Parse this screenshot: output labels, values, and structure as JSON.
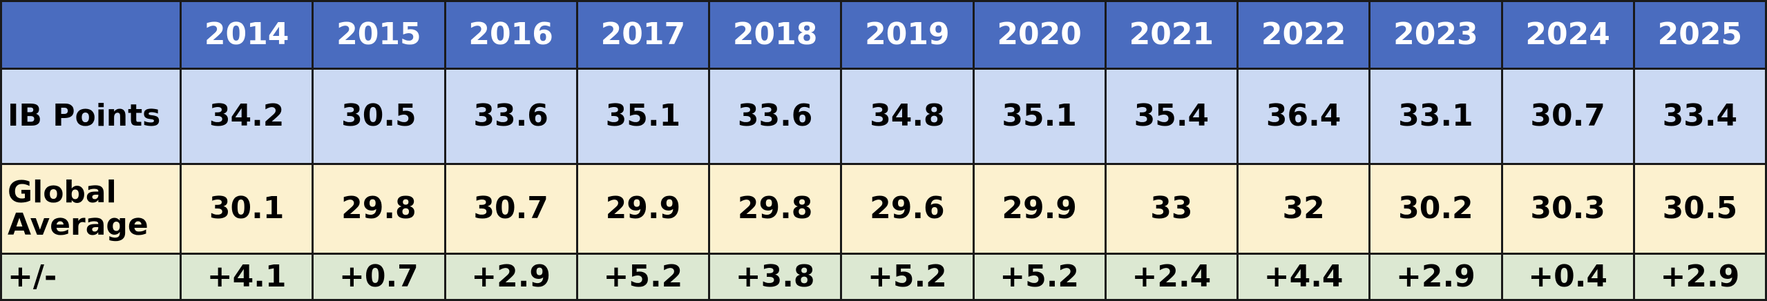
{
  "chart_data": {
    "type": "table",
    "columns": [
      "2014",
      "2015",
      "2016",
      "2017",
      "2018",
      "2019",
      "2020",
      "2021",
      "2022",
      "2023",
      "2024",
      "2025"
    ],
    "rows": [
      {
        "label": "IB Points",
        "values": [
          "34.2",
          "30.5",
          "33.6",
          "35.1",
          "33.6",
          "34.8",
          "35.1",
          "35.4",
          "36.4",
          "33.1",
          "30.7",
          "33.4"
        ]
      },
      {
        "label": "Global Average",
        "values": [
          "30.1",
          "29.8",
          "30.7",
          "29.9",
          "29.8",
          "29.6",
          "29.9",
          "33",
          "32",
          "30.2",
          "30.3",
          "30.5"
        ]
      },
      {
        "label": "+/-",
        "values": [
          "+4.1",
          "+0.7",
          "+2.9",
          "+5.2",
          "+3.8",
          "+5.2",
          "+5.2",
          "+2.4",
          "+4.4",
          "+2.9",
          "+0.4",
          "+2.9"
        ]
      }
    ]
  },
  "colors": {
    "header_bg": "#4a6cbf",
    "header_text": "#ffffff",
    "ib_row_bg": "#cbd9f3",
    "global_row_bg": "#fcf1cf",
    "diff_row_bg": "#dce8d2",
    "border": "#1a1a1a"
  }
}
